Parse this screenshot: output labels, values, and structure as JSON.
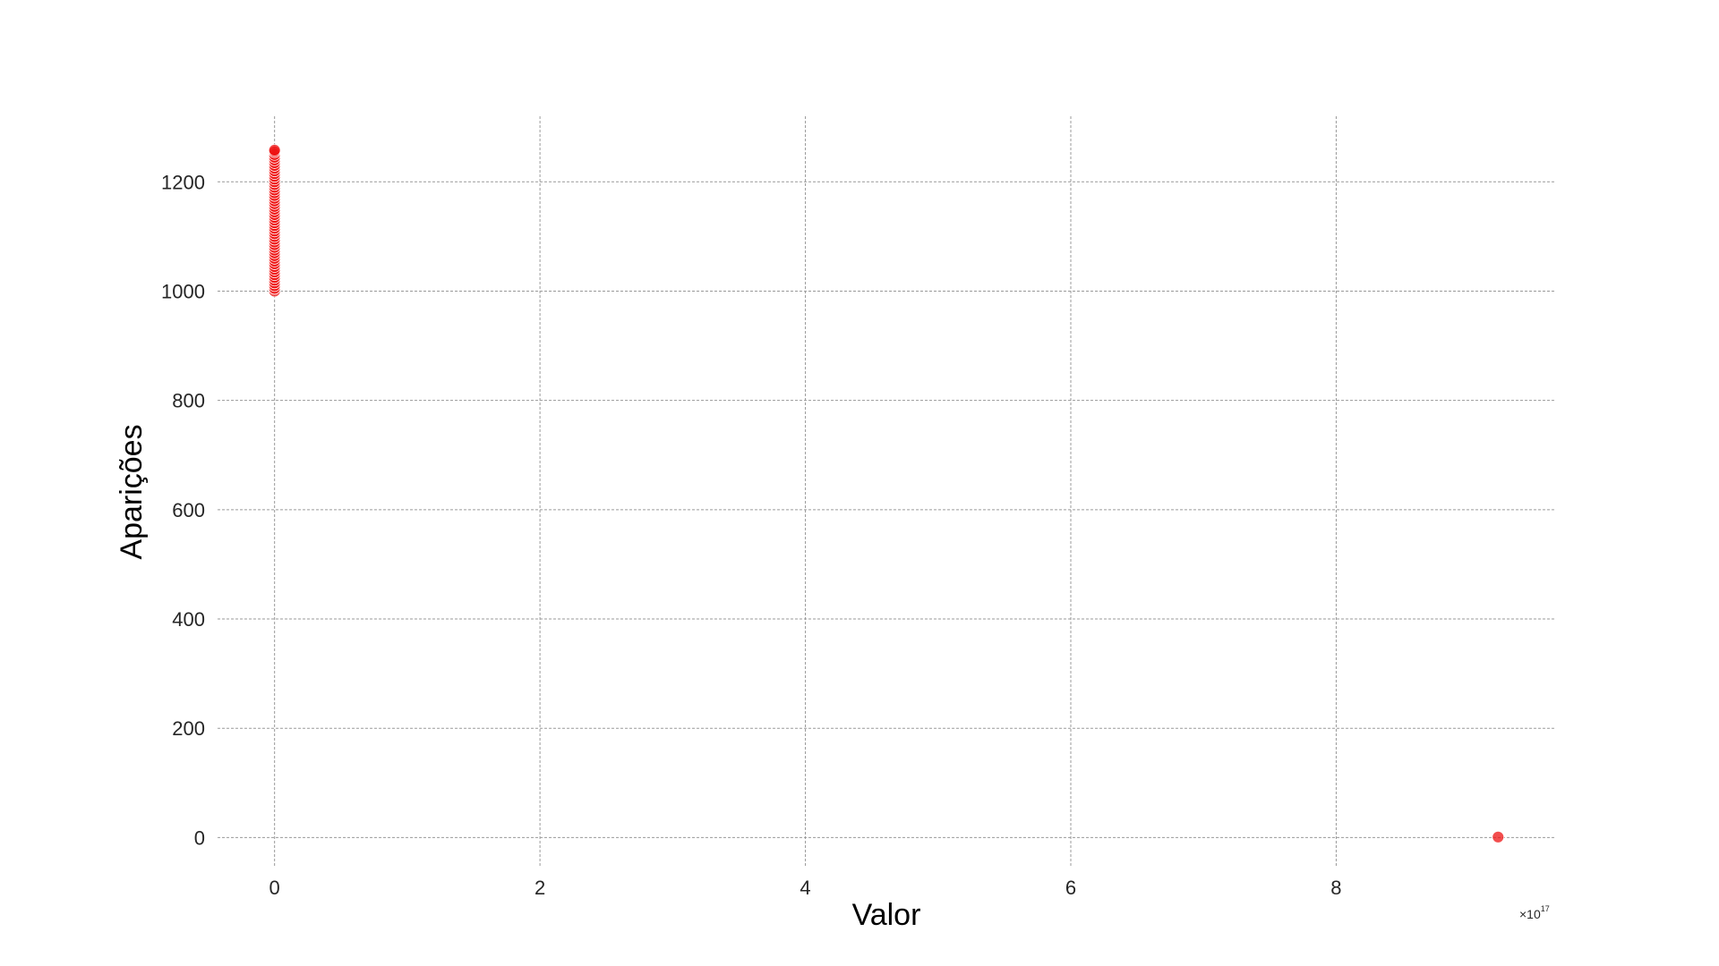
{
  "chart_data": {
    "type": "scatter",
    "xlabel": "Valor",
    "ylabel": "Aparições",
    "x_offset_text": "×10",
    "x_offset_exponent": "17",
    "x_tick_values": [
      0,
      2,
      4,
      6,
      8
    ],
    "x_tick_labels": [
      "0",
      "2",
      "4",
      "6",
      "8"
    ],
    "y_tick_values": [
      0,
      200,
      400,
      600,
      800,
      1000,
      1200
    ],
    "y_tick_labels": [
      "0",
      "200",
      "400",
      "600",
      "800",
      "1000",
      "1200"
    ],
    "xlim": [
      -0.47,
      9.65
    ],
    "ylim": [
      -55,
      1320
    ],
    "x_scale_multiplier": "1e17",
    "grid": true,
    "marker_color": "#ee1111",
    "series": [
      {
        "x": [
          0,
          0,
          0,
          0,
          0,
          0,
          0,
          0,
          0,
          0,
          0,
          0,
          0,
          0,
          0,
          0,
          0,
          0,
          0,
          0,
          0,
          0,
          0,
          0,
          0,
          0,
          0,
          0,
          0,
          0,
          0,
          0,
          0,
          0,
          0,
          0,
          0,
          0,
          0,
          0,
          0,
          0,
          0,
          0,
          0,
          0,
          0,
          0,
          0,
          0,
          0,
          0,
          0,
          9.22
        ],
        "y": [
          1000,
          1005,
          1010,
          1015,
          1020,
          1025,
          1030,
          1035,
          1040,
          1045,
          1050,
          1055,
          1060,
          1065,
          1070,
          1075,
          1080,
          1085,
          1090,
          1095,
          1100,
          1105,
          1110,
          1115,
          1120,
          1125,
          1130,
          1135,
          1140,
          1145,
          1150,
          1155,
          1160,
          1165,
          1170,
          1175,
          1180,
          1185,
          1190,
          1195,
          1200,
          1205,
          1210,
          1215,
          1220,
          1225,
          1230,
          1235,
          1240,
          1245,
          1250,
          1255,
          1258,
          1
        ]
      }
    ]
  }
}
